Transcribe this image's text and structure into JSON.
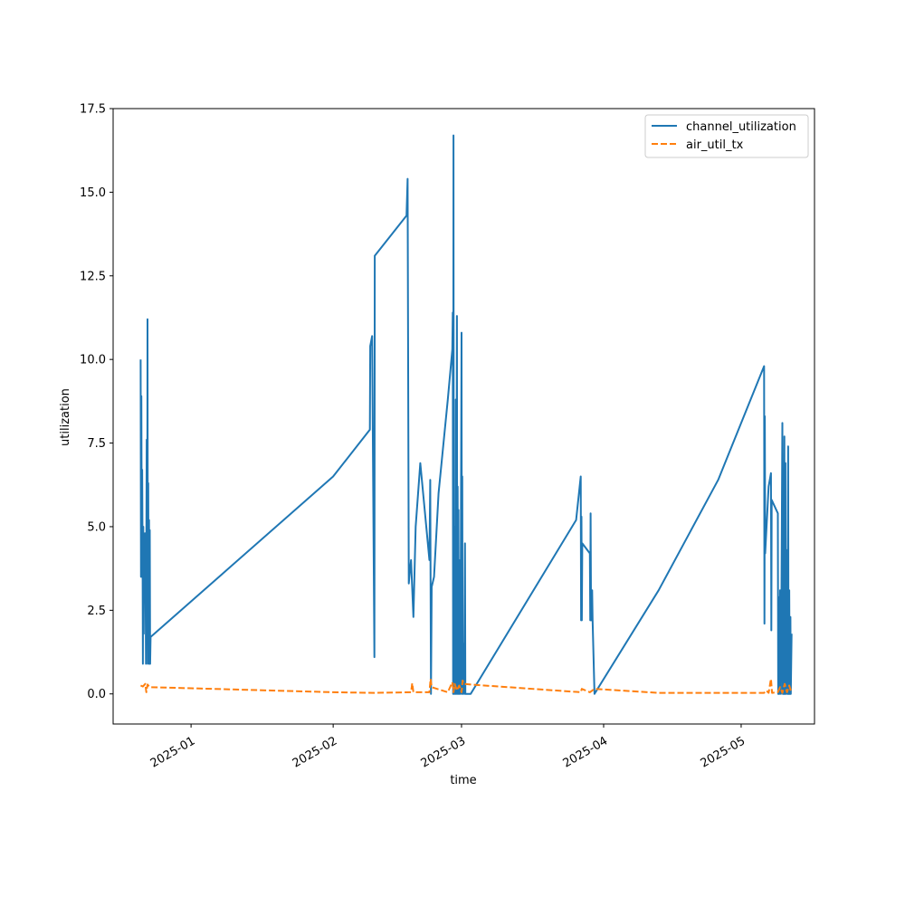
{
  "chart_data": {
    "type": "line",
    "title": "",
    "xlabel": "time",
    "ylabel": "utilization",
    "x_axis_type": "date",
    "xlim": [
      "2024-12-15",
      "2025-05-17"
    ],
    "ylim": [
      -0.9,
      17.5
    ],
    "x_ticks": [
      {
        "date": "2025-01-01",
        "label": "2025-01"
      },
      {
        "date": "2025-02-01",
        "label": "2025-02"
      },
      {
        "date": "2025-03-01",
        "label": "2025-03"
      },
      {
        "date": "2025-04-01",
        "label": "2025-04"
      },
      {
        "date": "2025-05-01",
        "label": "2025-05"
      }
    ],
    "y_ticks": [
      0.0,
      2.5,
      5.0,
      7.5,
      10.0,
      12.5,
      15.0,
      17.5
    ],
    "y_tick_labels": [
      "0.0",
      "2.5",
      "5.0",
      "7.5",
      "10.0",
      "12.5",
      "15.0",
      "17.5"
    ],
    "grid": false,
    "legend_position": "top-right",
    "series": [
      {
        "name": "channel_utilization",
        "color": "#1f77b4",
        "style": "solid",
        "points": [
          [
            "2024-12-21T00",
            10.0
          ],
          [
            "2024-12-21T02",
            3.5
          ],
          [
            "2024-12-21T04",
            8.9
          ],
          [
            "2024-12-21T06",
            3.5
          ],
          [
            "2024-12-21T08",
            6.7
          ],
          [
            "2024-12-21T10",
            4.5
          ],
          [
            "2024-12-21T12",
            0.9
          ],
          [
            "2024-12-21T14",
            5.0
          ],
          [
            "2024-12-21T16",
            1.8
          ],
          [
            "2024-12-21T18",
            4.8
          ],
          [
            "2024-12-21T20",
            3.0
          ],
          [
            "2024-12-22T00",
            4.8
          ],
          [
            "2024-12-22T04",
            0.9
          ],
          [
            "2024-12-22T08",
            7.6
          ],
          [
            "2024-12-22T10",
            1.8
          ],
          [
            "2024-12-22T12",
            11.2
          ],
          [
            "2024-12-22T14",
            0.9
          ],
          [
            "2024-12-22T16",
            6.3
          ],
          [
            "2024-12-22T18",
            1.8
          ],
          [
            "2024-12-22T20",
            5.2
          ],
          [
            "2024-12-22T22",
            0.9
          ],
          [
            "2024-12-23T00",
            4.9
          ],
          [
            "2024-12-23T02",
            0.9
          ],
          [
            "2024-12-23T04",
            1.7
          ],
          [
            "2025-02-01",
            6.5
          ],
          [
            "2025-02-09",
            7.9
          ],
          [
            "2025-02-09T02",
            10.4
          ],
          [
            "2025-02-09T12",
            10.7
          ],
          [
            "2025-02-10",
            1.1
          ],
          [
            "2025-02-10T02",
            13.1
          ],
          [
            "2025-02-17",
            14.3
          ],
          [
            "2025-02-17T06",
            15.4
          ],
          [
            "2025-02-17T12",
            3.3
          ],
          [
            "2025-02-17T18",
            3.7
          ],
          [
            "2025-02-18",
            4.0
          ],
          [
            "2025-02-18T12",
            2.3
          ],
          [
            "2025-02-19",
            5.0
          ],
          [
            "2025-02-20",
            6.9
          ],
          [
            "2025-02-22",
            4.0
          ],
          [
            "2025-02-22T04",
            6.4
          ],
          [
            "2025-02-22T08",
            0.0
          ],
          [
            "2025-02-22T12",
            3.2
          ],
          [
            "2025-02-23",
            3.5
          ],
          [
            "2025-02-24",
            6.0
          ],
          [
            "2025-02-26",
            8.8
          ],
          [
            "2025-02-27",
            10.3
          ],
          [
            "2025-02-27T02",
            11.4
          ],
          [
            "2025-02-27T04",
            0.0
          ],
          [
            "2025-02-27T06",
            16.7
          ],
          [
            "2025-02-27T08",
            0.0
          ],
          [
            "2025-02-27T10",
            3.2
          ],
          [
            "2025-02-27T12",
            0.0
          ],
          [
            "2025-02-27T14",
            5.0
          ],
          [
            "2025-02-27T16",
            0.0
          ],
          [
            "2025-02-27T18",
            8.8
          ],
          [
            "2025-02-27T20",
            0.0
          ],
          [
            "2025-02-28",
            11.3
          ],
          [
            "2025-02-28T02",
            0.0
          ],
          [
            "2025-02-28T04",
            6.2
          ],
          [
            "2025-02-28T06",
            0.0
          ],
          [
            "2025-02-28T08",
            5.5
          ],
          [
            "2025-02-28T10",
            0.0
          ],
          [
            "2025-02-28T12",
            4.0
          ],
          [
            "2025-02-28T14",
            0.0
          ],
          [
            "2025-02-28T16",
            2.5
          ],
          [
            "2025-02-28T18",
            0.0
          ],
          [
            "2025-03-01",
            10.8
          ],
          [
            "2025-03-01T02",
            0.0
          ],
          [
            "2025-03-01T04",
            6.5
          ],
          [
            "2025-03-01T06",
            0.0
          ],
          [
            "2025-03-01T12",
            1.5
          ],
          [
            "2025-03-01T14",
            0.0
          ],
          [
            "2025-03-01T18",
            4.5
          ],
          [
            "2025-03-01T20",
            0.0
          ],
          [
            "2025-03-02",
            0.0
          ],
          [
            "2025-03-03",
            0.0
          ],
          [
            "2025-03-26",
            5.2
          ],
          [
            "2025-03-27",
            6.5
          ],
          [
            "2025-03-27T02",
            2.2
          ],
          [
            "2025-03-27T04",
            5.3
          ],
          [
            "2025-03-27T06",
            2.2
          ],
          [
            "2025-03-27T08",
            4.5
          ],
          [
            "2025-03-29",
            4.2
          ],
          [
            "2025-03-29T02",
            2.2
          ],
          [
            "2025-03-29T04",
            5.4
          ],
          [
            "2025-03-29T06",
            2.2
          ],
          [
            "2025-03-29T12",
            3.1
          ],
          [
            "2025-03-29T14",
            2.2
          ],
          [
            "2025-03-30",
            0.0
          ],
          [
            "2025-04-13",
            3.1
          ],
          [
            "2025-04-26",
            6.4
          ],
          [
            "2025-05-06",
            9.8
          ],
          [
            "2025-05-06T02",
            2.1
          ],
          [
            "2025-05-06T04",
            8.3
          ],
          [
            "2025-05-06T06",
            4.2
          ],
          [
            "2025-05-07",
            6.2
          ],
          [
            "2025-05-07T12",
            6.6
          ],
          [
            "2025-05-07T14",
            1.9
          ],
          [
            "2025-05-07T16",
            5.8
          ],
          [
            "2025-05-09",
            5.4
          ],
          [
            "2025-05-09T02",
            0.0
          ],
          [
            "2025-05-09T04",
            2.9
          ],
          [
            "2025-05-09T08",
            0.0
          ],
          [
            "2025-05-09T12",
            3.1
          ],
          [
            "2025-05-09T16",
            0.0
          ],
          [
            "2025-05-10",
            8.1
          ],
          [
            "2025-05-10T02",
            0.0
          ],
          [
            "2025-05-10T04",
            3.2
          ],
          [
            "2025-05-10T06",
            0.0
          ],
          [
            "2025-05-10T10",
            7.7
          ],
          [
            "2025-05-10T12",
            0.0
          ],
          [
            "2025-05-10T16",
            6.9
          ],
          [
            "2025-05-10T18",
            0.0
          ],
          [
            "2025-05-11",
            4.3
          ],
          [
            "2025-05-11T02",
            0.0
          ],
          [
            "2025-05-11T06",
            7.4
          ],
          [
            "2025-05-11T08",
            0.0
          ],
          [
            "2025-05-11T12",
            3.1
          ],
          [
            "2025-05-11T14",
            0.0
          ],
          [
            "2025-05-11T18",
            2.3
          ],
          [
            "2025-05-11T20",
            0.0
          ],
          [
            "2025-05-12",
            1.8
          ]
        ]
      },
      {
        "name": "air_util_tx",
        "color": "#ff7f0e",
        "style": "dashed",
        "points": [
          [
            "2024-12-21",
            0.25
          ],
          [
            "2024-12-21T12",
            0.22
          ],
          [
            "2024-12-22",
            0.3
          ],
          [
            "2024-12-22T06",
            0.05
          ],
          [
            "2024-12-22T12",
            0.28
          ],
          [
            "2024-12-23",
            0.2
          ],
          [
            "2025-01-01",
            0.17
          ],
          [
            "2025-02-01",
            0.05
          ],
          [
            "2025-02-10",
            0.03
          ],
          [
            "2025-02-18",
            0.05
          ],
          [
            "2025-02-18T06",
            0.32
          ],
          [
            "2025-02-18T12",
            0.05
          ],
          [
            "2025-02-22",
            0.05
          ],
          [
            "2025-02-22T06",
            0.45
          ],
          [
            "2025-02-22T12",
            0.2
          ],
          [
            "2025-02-26",
            0.05
          ],
          [
            "2025-02-27",
            0.35
          ],
          [
            "2025-02-27T06",
            0.05
          ],
          [
            "2025-02-27T12",
            0.3
          ],
          [
            "2025-02-28",
            0.1
          ],
          [
            "2025-02-28T12",
            0.25
          ],
          [
            "2025-03-01",
            0.05
          ],
          [
            "2025-03-01T06",
            0.4
          ],
          [
            "2025-03-01T12",
            0.3
          ],
          [
            "2025-03-03",
            0.28
          ],
          [
            "2025-03-27",
            0.05
          ],
          [
            "2025-03-27T06",
            0.15
          ],
          [
            "2025-03-29",
            0.05
          ],
          [
            "2025-03-30",
            0.15
          ],
          [
            "2025-04-13",
            0.03
          ],
          [
            "2025-05-06",
            0.03
          ],
          [
            "2025-05-06T12",
            0.1
          ],
          [
            "2025-05-07",
            0.03
          ],
          [
            "2025-05-07T12",
            0.45
          ],
          [
            "2025-05-07T18",
            0.03
          ],
          [
            "2025-05-09",
            0.05
          ],
          [
            "2025-05-09T12",
            0.2
          ],
          [
            "2025-05-10",
            0.03
          ],
          [
            "2025-05-10T12",
            0.3
          ],
          [
            "2025-05-11",
            0.05
          ],
          [
            "2025-05-11T12",
            0.25
          ],
          [
            "2025-05-12",
            0.03
          ]
        ]
      }
    ]
  }
}
